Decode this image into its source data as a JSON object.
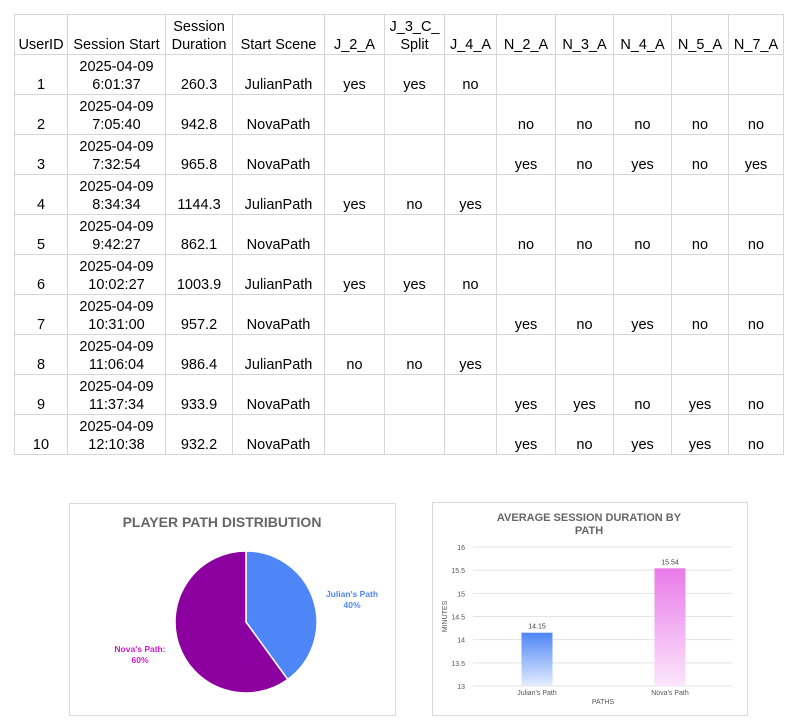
{
  "table": {
    "headers": [
      {
        "l1": "",
        "l2": "UserID"
      },
      {
        "l1": "",
        "l2": "Session Start"
      },
      {
        "l1": "Session",
        "l2": "Duration"
      },
      {
        "l1": "",
        "l2": "Start Scene"
      },
      {
        "l1": "",
        "l2": "J_2_A"
      },
      {
        "l1": "J_3_C_",
        "l2": "Split"
      },
      {
        "l1": "",
        "l2": "J_4_A"
      },
      {
        "l1": "",
        "l2": "N_2_A"
      },
      {
        "l1": "",
        "l2": "N_3_A"
      },
      {
        "l1": "",
        "l2": "N_4_A"
      },
      {
        "l1": "",
        "l2": "N_5_A"
      },
      {
        "l1": "",
        "l2": "N_7_A"
      }
    ],
    "rows": [
      {
        "id": "1",
        "date": "2025-04-09",
        "time": "6:01:37",
        "dur": "260.3",
        "scene": "JulianPath",
        "cells": [
          "yes",
          "yes",
          "no",
          "",
          "",
          "",
          "",
          ""
        ]
      },
      {
        "id": "2",
        "date": "2025-04-09",
        "time": "7:05:40",
        "dur": "942.8",
        "scene": "NovaPath",
        "cells": [
          "",
          "",
          "",
          "no",
          "no",
          "no",
          "no",
          "no"
        ]
      },
      {
        "id": "3",
        "date": "2025-04-09",
        "time": "7:32:54",
        "dur": "965.8",
        "scene": "NovaPath",
        "cells": [
          "",
          "",
          "",
          "yes",
          "no",
          "yes",
          "no",
          "yes"
        ]
      },
      {
        "id": "4",
        "date": "2025-04-09",
        "time": "8:34:34",
        "dur": "1144.3",
        "scene": "JulianPath",
        "cells": [
          "yes",
          "no",
          "yes",
          "",
          "",
          "",
          "",
          ""
        ]
      },
      {
        "id": "5",
        "date": "2025-04-09",
        "time": "9:42:27",
        "dur": "862.1",
        "scene": "NovaPath",
        "cells": [
          "",
          "",
          "",
          "no",
          "no",
          "no",
          "no",
          "no"
        ]
      },
      {
        "id": "6",
        "date": "2025-04-09",
        "time": "10:02:27",
        "dur": "1003.9",
        "scene": "JulianPath",
        "cells": [
          "yes",
          "yes",
          "no",
          "",
          "",
          "",
          "",
          ""
        ]
      },
      {
        "id": "7",
        "date": "2025-04-09",
        "time": "10:31:00",
        "dur": "957.2",
        "scene": "NovaPath",
        "cells": [
          "",
          "",
          "",
          "yes",
          "no",
          "yes",
          "no",
          "no"
        ]
      },
      {
        "id": "8",
        "date": "2025-04-09",
        "time": "11:06:04",
        "dur": "986.4",
        "scene": "JulianPath",
        "cells": [
          "no",
          "no",
          "yes",
          "",
          "",
          "",
          "",
          ""
        ]
      },
      {
        "id": "9",
        "date": "2025-04-09",
        "time": "11:37:34",
        "dur": "933.9",
        "scene": "NovaPath",
        "cells": [
          "",
          "",
          "",
          "yes",
          "yes",
          "no",
          "yes",
          "no"
        ]
      },
      {
        "id": "10",
        "date": "2025-04-09",
        "time": "12:10:38",
        "dur": "932.2",
        "scene": "NovaPath",
        "cells": [
          "",
          "",
          "",
          "yes",
          "no",
          "yes",
          "yes",
          "no"
        ]
      }
    ]
  },
  "chart_data": [
    {
      "type": "pie",
      "title": "PLAYER PATH DISTRIBUTION",
      "slices": [
        {
          "name": "Julian's Path",
          "value": 40,
          "label": "40%",
          "color": "#4f86f7"
        },
        {
          "name": "Nova's Path",
          "value": 60,
          "label": "60%",
          "color": "#8c00a0"
        }
      ],
      "label_colors": {
        "Julian's Path": "#4f86f7",
        "Nova's Path": "#d11bd1"
      }
    },
    {
      "type": "bar",
      "title": "AVERAGE SESSION DURATION BY PATH",
      "categories": [
        "Julian's Path",
        "Nova's Path"
      ],
      "values": [
        14.15,
        15.54
      ],
      "value_labels": [
        "14.15",
        "15.54"
      ],
      "xlabel": "PATHS",
      "ylabel": "MINUTES",
      "ylim": [
        13,
        16
      ],
      "yticks": [
        "13",
        "13.5",
        "14",
        "14.5",
        "15",
        "15.5",
        "16"
      ],
      "grid": true,
      "colors": [
        {
          "top": "#4f86f7",
          "bottom": "#e3ecfd"
        },
        {
          "top": "#e97ae9",
          "bottom": "#fbe6fb"
        }
      ]
    }
  ]
}
